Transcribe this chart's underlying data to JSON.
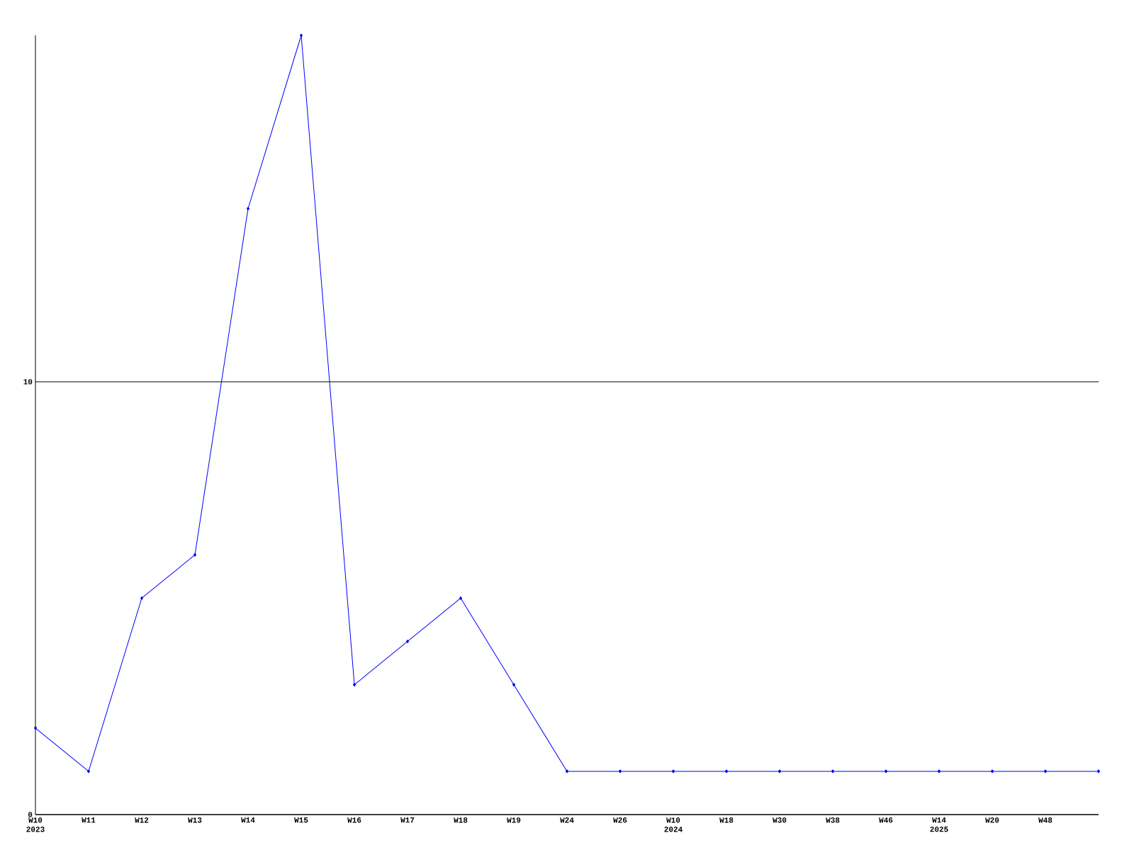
{
  "chart_data": {
    "type": "line",
    "categories": [
      "W10 2023",
      "W11",
      "W12",
      "W13",
      "W14",
      "W15",
      "W16",
      "W17",
      "W18",
      "W19",
      "W24",
      "W26",
      "W10 2024",
      "W18",
      "W30",
      "W38",
      "W46",
      "W14 2025",
      "W20",
      "W48",
      null
    ],
    "series": [
      {
        "color": "#0000ff",
        "values": [
          2,
          1,
          5,
          6,
          14,
          18,
          3,
          4,
          5,
          3,
          1,
          1,
          1,
          1,
          1,
          1,
          1,
          1,
          1,
          1,
          1
        ]
      }
    ],
    "ylim": [
      0,
      18
    ],
    "yticks": [
      0,
      10
    ],
    "grid": "y",
    "marker": "diamond"
  }
}
